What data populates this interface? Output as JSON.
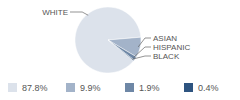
{
  "chart_data": {
    "type": "pie",
    "categories": [
      "WHITE",
      "ASIAN",
      "HISPANIC",
      "BLACK"
    ],
    "values": [
      87.8,
      9.9,
      1.9,
      0.4
    ],
    "value_labels": [
      "87.8%",
      "9.9%",
      "1.9%",
      "0.4%"
    ],
    "colors": [
      "#dce2eb",
      "#a3b3c9",
      "#6e87a6",
      "#2e5480"
    ],
    "legend": "bottom"
  }
}
